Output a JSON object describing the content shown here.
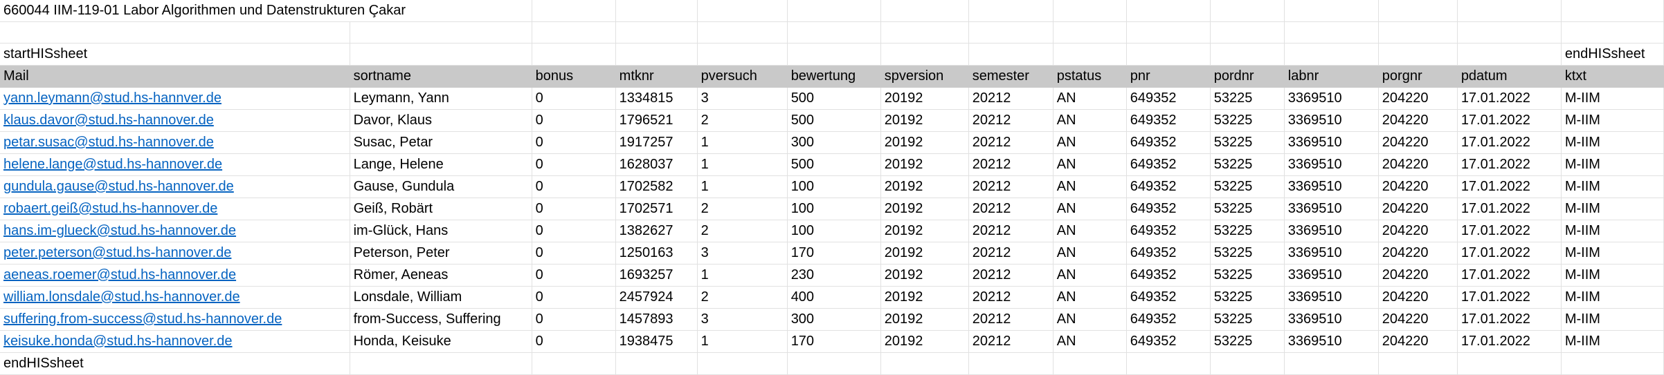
{
  "sheet": {
    "title_row": {
      "text": "660044  IIM-119-01  Labor Algorithmen und Datenstrukturen  Çakar"
    },
    "start_marker": "startHISsheet",
    "end_marker_top": "endHISsheet",
    "end_marker_bottom": "endHISsheet",
    "columns": [
      "Mail",
      "sortname",
      "bonus",
      "mtknr",
      "pversuch",
      "bewertung",
      "spversion",
      "semester",
      "pstatus",
      "pnr",
      "pordnr",
      "labnr",
      "porgnr",
      "pdatum",
      "ktxt"
    ],
    "rows": [
      {
        "mail": "yann.leymann@stud.hs-hannver.de",
        "sortname": "Leymann, Yann",
        "bonus": "0",
        "mtknr": "1334815",
        "pversuch": "3",
        "bewertung": "500",
        "spversion": "20192",
        "semester": "20212",
        "pstatus": "AN",
        "pnr": "649352",
        "pordnr": "53225",
        "labnr": "3369510",
        "porgnr": "204220",
        "pdatum": "17.01.2022",
        "ktxt": "M-IIM"
      },
      {
        "mail": "klaus.davor@stud.hs-hannover.de",
        "sortname": "Davor, Klaus",
        "bonus": "0",
        "mtknr": "1796521",
        "pversuch": "2",
        "bewertung": "500",
        "spversion": "20192",
        "semester": "20212",
        "pstatus": "AN",
        "pnr": "649352",
        "pordnr": "53225",
        "labnr": "3369510",
        "porgnr": "204220",
        "pdatum": "17.01.2022",
        "ktxt": "M-IIM"
      },
      {
        "mail": "petar.susac@stud.hs-hannover.de",
        "sortname": "Susac, Petar",
        "bonus": "0",
        "mtknr": "1917257",
        "pversuch": "1",
        "bewertung": "300",
        "spversion": "20192",
        "semester": "20212",
        "pstatus": "AN",
        "pnr": "649352",
        "pordnr": "53225",
        "labnr": "3369510",
        "porgnr": "204220",
        "pdatum": "17.01.2022",
        "ktxt": "M-IIM"
      },
      {
        "mail": "helene.lange@stud.hs-hannover.de",
        "sortname": "Lange, Helene",
        "bonus": "0",
        "mtknr": "1628037",
        "pversuch": "1",
        "bewertung": "500",
        "spversion": "20192",
        "semester": "20212",
        "pstatus": "AN",
        "pnr": "649352",
        "pordnr": "53225",
        "labnr": "3369510",
        "porgnr": "204220",
        "pdatum": "17.01.2022",
        "ktxt": "M-IIM"
      },
      {
        "mail": "gundula.gause@stud.hs-hannover.de",
        "sortname": "Gause, Gundula",
        "bonus": "0",
        "mtknr": "1702582",
        "pversuch": "1",
        "bewertung": "100",
        "spversion": "20192",
        "semester": "20212",
        "pstatus": "AN",
        "pnr": "649352",
        "pordnr": "53225",
        "labnr": "3369510",
        "porgnr": "204220",
        "pdatum": "17.01.2022",
        "ktxt": "M-IIM"
      },
      {
        "mail": "robaert.geiß@stud.hs-hannover.de",
        "sortname": "Geiß, Robärt",
        "bonus": "0",
        "mtknr": "1702571",
        "pversuch": "2",
        "bewertung": "100",
        "spversion": "20192",
        "semester": "20212",
        "pstatus": "AN",
        "pnr": "649352",
        "pordnr": "53225",
        "labnr": "3369510",
        "porgnr": "204220",
        "pdatum": "17.01.2022",
        "ktxt": "M-IIM"
      },
      {
        "mail": "hans.im-glueck@stud.hs-hannover.de",
        "sortname": "im-Glück, Hans",
        "bonus": "0",
        "mtknr": "1382627",
        "pversuch": "2",
        "bewertung": "100",
        "spversion": "20192",
        "semester": "20212",
        "pstatus": "AN",
        "pnr": "649352",
        "pordnr": "53225",
        "labnr": "3369510",
        "porgnr": "204220",
        "pdatum": "17.01.2022",
        "ktxt": "M-IIM"
      },
      {
        "mail": "peter.peterson@stud.hs-hannover.de",
        "sortname": "Peterson, Peter",
        "bonus": "0",
        "mtknr": "1250163",
        "pversuch": "3",
        "bewertung": "170",
        "spversion": "20192",
        "semester": "20212",
        "pstatus": "AN",
        "pnr": "649352",
        "pordnr": "53225",
        "labnr": "3369510",
        "porgnr": "204220",
        "pdatum": "17.01.2022",
        "ktxt": "M-IIM"
      },
      {
        "mail": "aeneas.roemer@stud.hs-hannover.de",
        "sortname": "Römer, Aeneas",
        "bonus": "0",
        "mtknr": "1693257",
        "pversuch": "1",
        "bewertung": "230",
        "spversion": "20192",
        "semester": "20212",
        "pstatus": "AN",
        "pnr": "649352",
        "pordnr": "53225",
        "labnr": "3369510",
        "porgnr": "204220",
        "pdatum": "17.01.2022",
        "ktxt": "M-IIM"
      },
      {
        "mail": "william.lonsdale@stud.hs-hannover.de",
        "sortname": "Lonsdale, William",
        "bonus": "0",
        "mtknr": "2457924",
        "pversuch": "2",
        "bewertung": "400",
        "spversion": "20192",
        "semester": "20212",
        "pstatus": "AN",
        "pnr": "649352",
        "pordnr": "53225",
        "labnr": "3369510",
        "porgnr": "204220",
        "pdatum": "17.01.2022",
        "ktxt": "M-IIM"
      },
      {
        "mail": "suffering.from-success@stud.hs-hannover.de",
        "sortname": "from-Success, Suffering",
        "bonus": "0",
        "mtknr": "1457893",
        "pversuch": "3",
        "bewertung": "300",
        "spversion": "20192",
        "semester": "20212",
        "pstatus": "AN",
        "pnr": "649352",
        "pordnr": "53225",
        "labnr": "3369510",
        "porgnr": "204220",
        "pdatum": "17.01.2022",
        "ktxt": "M-IIM"
      },
      {
        "mail": "keisuke.honda@stud.hs-hannover.de",
        "sortname": "Honda, Keisuke",
        "bonus": "0",
        "mtknr": "1938475",
        "pversuch": "1",
        "bewertung": "170",
        "spversion": "20192",
        "semester": "20212",
        "pstatus": "AN",
        "pnr": "649352",
        "pordnr": "53225",
        "labnr": "3369510",
        "porgnr": "204220",
        "pdatum": "17.01.2022",
        "ktxt": "M-IIM"
      }
    ]
  },
  "colors": {
    "link": "#0563c1",
    "header_fill": "#c9c9c9",
    "gridline": "#e1e1e1"
  }
}
